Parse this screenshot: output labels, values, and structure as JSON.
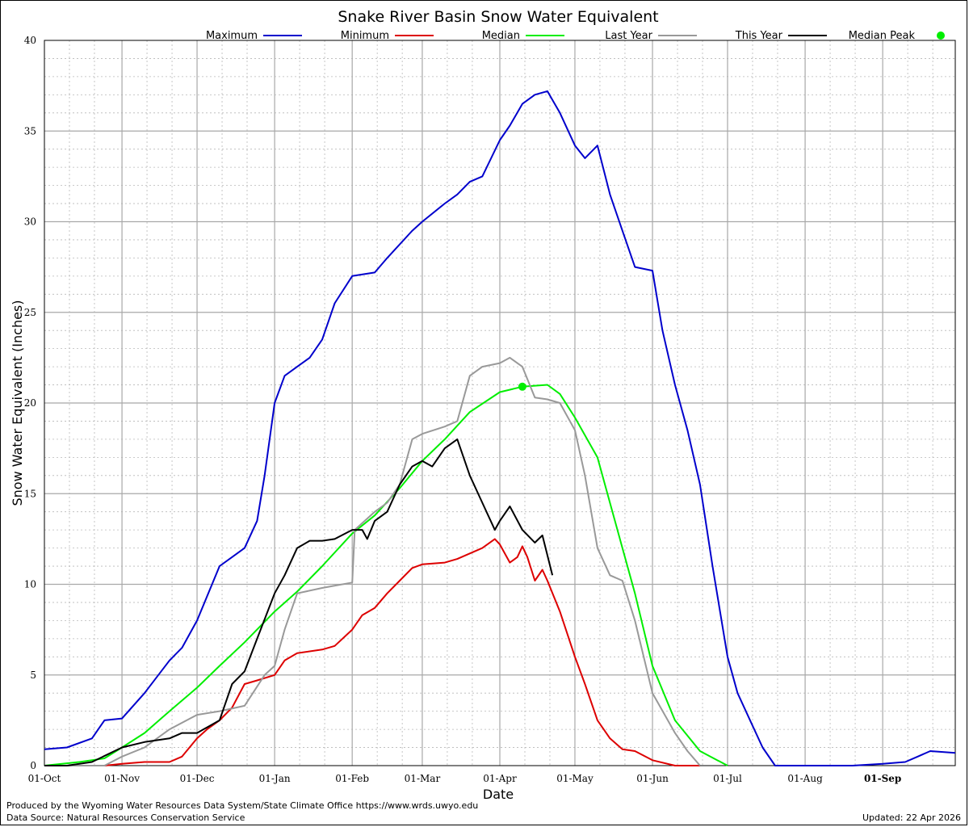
{
  "chart_data": {
    "type": "line",
    "title": "Snake River Basin Snow Water Equivalent",
    "xlabel": "Date",
    "ylabel": "Snow Water Equivalent (Inches)",
    "ylim": [
      0,
      40
    ],
    "yticks": [
      "0",
      "5",
      "10",
      "15",
      "20",
      "25",
      "30",
      "35",
      "40"
    ],
    "xticks": [
      "01-Oct",
      "01-Nov",
      "01-Dec",
      "01-Jan",
      "01-Feb",
      "01-Mar",
      "01-Apr",
      "01-May",
      "01-Jun",
      "01-Jul",
      "01-Aug",
      "01-Sep"
    ],
    "grid": true,
    "legend_placement": "top",
    "legend": [
      "Maximum",
      "Minimum",
      "Median",
      "Last Year",
      "This Year",
      "Median Peak"
    ],
    "colors": {
      "Maximum": "#0000cc",
      "Minimum": "#dd0000",
      "Median": "#00ee00",
      "Last Year": "#999999",
      "This Year": "#000000",
      "Median Peak": "#00ee00"
    },
    "series": [
      {
        "name": "Maximum",
        "color": "#0000cc",
        "points": [
          [
            "01-Oct",
            0.9
          ],
          [
            "10-Oct",
            1.0
          ],
          [
            "20-Oct",
            1.5
          ],
          [
            "25-Oct",
            2.5
          ],
          [
            "01-Nov",
            2.6
          ],
          [
            "10-Nov",
            4.0
          ],
          [
            "20-Nov",
            5.8
          ],
          [
            "25-Nov",
            6.5
          ],
          [
            "01-Dec",
            8.0
          ],
          [
            "10-Dec",
            11.0
          ],
          [
            "15-Dec",
            11.5
          ],
          [
            "20-Dec",
            12.0
          ],
          [
            "25-Dec",
            13.5
          ],
          [
            "28-Dec",
            16.0
          ],
          [
            "01-Jan",
            20.0
          ],
          [
            "05-Jan",
            21.5
          ],
          [
            "10-Jan",
            22.0
          ],
          [
            "15-Jan",
            22.5
          ],
          [
            "20-Jan",
            23.5
          ],
          [
            "25-Jan",
            25.5
          ],
          [
            "01-Feb",
            27.0
          ],
          [
            "10-Feb",
            27.2
          ],
          [
            "15-Feb",
            28.0
          ],
          [
            "25-Feb",
            29.5
          ],
          [
            "01-Mar",
            30.0
          ],
          [
            "10-Mar",
            31.0
          ],
          [
            "15-Mar",
            31.5
          ],
          [
            "20-Mar",
            32.2
          ],
          [
            "25-Mar",
            32.5
          ],
          [
            "01-Apr",
            34.5
          ],
          [
            "05-Apr",
            35.3
          ],
          [
            "10-Apr",
            36.5
          ],
          [
            "15-Apr",
            37.0
          ],
          [
            "20-Apr",
            37.2
          ],
          [
            "25-Apr",
            36.0
          ],
          [
            "01-May",
            34.2
          ],
          [
            "05-May",
            33.5
          ],
          [
            "10-May",
            34.2
          ],
          [
            "15-May",
            31.5
          ],
          [
            "20-May",
            29.5
          ],
          [
            "25-May",
            27.5
          ],
          [
            "01-Jun",
            27.3
          ],
          [
            "05-Jun",
            24.0
          ],
          [
            "10-Jun",
            21.0
          ],
          [
            "15-Jun",
            18.5
          ],
          [
            "20-Jun",
            15.5
          ],
          [
            "25-Jun",
            11.0
          ],
          [
            "01-Jul",
            6.0
          ],
          [
            "05-Jul",
            4.0
          ],
          [
            "10-Jul",
            2.5
          ],
          [
            "15-Jul",
            1.0
          ],
          [
            "20-Jul",
            0.0
          ],
          [
            "01-Aug",
            0.0
          ],
          [
            "20-Aug",
            0.0
          ],
          [
            "01-Sep",
            0.1
          ],
          [
            "10-Sep",
            0.2
          ],
          [
            "15-Sep",
            0.5
          ],
          [
            "20-Sep",
            0.8
          ],
          [
            "30-Sep",
            0.7
          ]
        ]
      },
      {
        "name": "Minimum",
        "color": "#dd0000",
        "points": [
          [
            "01-Oct",
            0.0
          ],
          [
            "25-Oct",
            0.0
          ],
          [
            "01-Nov",
            0.1
          ],
          [
            "10-Nov",
            0.2
          ],
          [
            "20-Nov",
            0.2
          ],
          [
            "25-Nov",
            0.5
          ],
          [
            "01-Dec",
            1.5
          ],
          [
            "05-Dec",
            2.0
          ],
          [
            "10-Dec",
            2.5
          ],
          [
            "15-Dec",
            3.2
          ],
          [
            "20-Dec",
            4.5
          ],
          [
            "25-Dec",
            4.7
          ],
          [
            "01-Jan",
            5.0
          ],
          [
            "05-Jan",
            5.8
          ],
          [
            "10-Jan",
            6.2
          ],
          [
            "20-Jan",
            6.4
          ],
          [
            "25-Jan",
            6.6
          ],
          [
            "01-Feb",
            7.5
          ],
          [
            "05-Feb",
            8.3
          ],
          [
            "10-Feb",
            8.7
          ],
          [
            "15-Feb",
            9.5
          ],
          [
            "20-Feb",
            10.2
          ],
          [
            "25-Feb",
            10.9
          ],
          [
            "01-Mar",
            11.1
          ],
          [
            "10-Mar",
            11.2
          ],
          [
            "15-Mar",
            11.4
          ],
          [
            "20-Mar",
            11.7
          ],
          [
            "25-Mar",
            12.0
          ],
          [
            "30-Mar",
            12.5
          ],
          [
            "01-Apr",
            12.2
          ],
          [
            "05-Apr",
            11.2
          ],
          [
            "08-Apr",
            11.5
          ],
          [
            "10-Apr",
            12.1
          ],
          [
            "12-Apr",
            11.5
          ],
          [
            "15-Apr",
            10.2
          ],
          [
            "18-Apr",
            10.8
          ],
          [
            "20-Apr",
            10.2
          ],
          [
            "25-Apr",
            8.5
          ],
          [
            "01-May",
            6.0
          ],
          [
            "05-May",
            4.5
          ],
          [
            "10-May",
            2.5
          ],
          [
            "15-May",
            1.5
          ],
          [
            "20-May",
            0.9
          ],
          [
            "25-May",
            0.8
          ],
          [
            "01-Jun",
            0.3
          ],
          [
            "10-Jun",
            0.0
          ],
          [
            "20-Jun",
            0.0
          ]
        ]
      },
      {
        "name": "Median",
        "color": "#00ee00",
        "points": [
          [
            "01-Oct",
            0.0
          ],
          [
            "15-Oct",
            0.2
          ],
          [
            "25-Oct",
            0.4
          ],
          [
            "01-Nov",
            1.0
          ],
          [
            "10-Nov",
            1.8
          ],
          [
            "20-Nov",
            3.0
          ],
          [
            "01-Dec",
            4.3
          ],
          [
            "10-Dec",
            5.5
          ],
          [
            "20-Dec",
            6.8
          ],
          [
            "01-Jan",
            8.5
          ],
          [
            "10-Jan",
            9.6
          ],
          [
            "20-Jan",
            11.0
          ],
          [
            "01-Feb",
            12.8
          ],
          [
            "10-Feb",
            13.8
          ],
          [
            "20-Feb",
            15.3
          ],
          [
            "01-Mar",
            16.8
          ],
          [
            "10-Mar",
            18.0
          ],
          [
            "20-Mar",
            19.5
          ],
          [
            "01-Apr",
            20.6
          ],
          [
            "10-Apr",
            20.9
          ],
          [
            "20-Apr",
            21.0
          ],
          [
            "25-Apr",
            20.5
          ],
          [
            "01-May",
            19.2
          ],
          [
            "10-May",
            17.0
          ],
          [
            "20-May",
            12.0
          ],
          [
            "25-May",
            9.5
          ],
          [
            "01-Jun",
            5.5
          ],
          [
            "10-Jun",
            2.5
          ],
          [
            "20-Jun",
            0.8
          ],
          [
            "01-Jul",
            0.0
          ]
        ]
      },
      {
        "name": "Last Year",
        "color": "#999999",
        "points": [
          [
            "01-Oct",
            0.0
          ],
          [
            "25-Oct",
            0.0
          ],
          [
            "01-Nov",
            0.5
          ],
          [
            "10-Nov",
            1.0
          ],
          [
            "20-Nov",
            2.0
          ],
          [
            "01-Dec",
            2.8
          ],
          [
            "10-Dec",
            3.0
          ],
          [
            "20-Dec",
            3.3
          ],
          [
            "28-Dec",
            5.0
          ],
          [
            "01-Jan",
            5.5
          ],
          [
            "05-Jan",
            7.5
          ],
          [
            "10-Jan",
            9.5
          ],
          [
            "20-Jan",
            9.8
          ],
          [
            "01-Feb",
            10.1
          ],
          [
            "02-Feb",
            13.0
          ],
          [
            "10-Feb",
            14.0
          ],
          [
            "15-Feb",
            14.5
          ],
          [
            "20-Feb",
            15.5
          ],
          [
            "25-Feb",
            18.0
          ],
          [
            "01-Mar",
            18.3
          ],
          [
            "10-Mar",
            18.7
          ],
          [
            "15-Mar",
            19.0
          ],
          [
            "20-Mar",
            21.5
          ],
          [
            "25-Mar",
            22.0
          ],
          [
            "01-Apr",
            22.2
          ],
          [
            "05-Apr",
            22.5
          ],
          [
            "10-Apr",
            22.0
          ],
          [
            "15-Apr",
            20.3
          ],
          [
            "20-Apr",
            20.2
          ],
          [
            "25-Apr",
            20.0
          ],
          [
            "01-May",
            18.5
          ],
          [
            "05-May",
            16.0
          ],
          [
            "10-May",
            12.0
          ],
          [
            "15-May",
            10.5
          ],
          [
            "20-May",
            10.2
          ],
          [
            "25-May",
            8.0
          ],
          [
            "01-Jun",
            4.0
          ],
          [
            "10-Jun",
            1.8
          ],
          [
            "15-Jun",
            0.8
          ],
          [
            "20-Jun",
            0.0
          ]
        ]
      },
      {
        "name": "This Year",
        "color": "#000000",
        "points": [
          [
            "01-Oct",
            0.0
          ],
          [
            "10-Oct",
            0.0
          ],
          [
            "20-Oct",
            0.2
          ],
          [
            "01-Nov",
            1.0
          ],
          [
            "10-Nov",
            1.3
          ],
          [
            "20-Nov",
            1.5
          ],
          [
            "25-Nov",
            1.8
          ],
          [
            "01-Dec",
            1.8
          ],
          [
            "10-Dec",
            2.5
          ],
          [
            "15-Dec",
            4.5
          ],
          [
            "20-Dec",
            5.2
          ],
          [
            "25-Dec",
            7.0
          ],
          [
            "01-Jan",
            9.5
          ],
          [
            "05-Jan",
            10.5
          ],
          [
            "10-Jan",
            12.0
          ],
          [
            "15-Jan",
            12.4
          ],
          [
            "20-Jan",
            12.4
          ],
          [
            "25-Jan",
            12.5
          ],
          [
            "01-Feb",
            13.0
          ],
          [
            "05-Feb",
            13.0
          ],
          [
            "07-Feb",
            12.5
          ],
          [
            "10-Feb",
            13.5
          ],
          [
            "15-Feb",
            14.0
          ],
          [
            "20-Feb",
            15.5
          ],
          [
            "25-Feb",
            16.5
          ],
          [
            "01-Mar",
            16.8
          ],
          [
            "05-Mar",
            16.5
          ],
          [
            "10-Mar",
            17.5
          ],
          [
            "15-Mar",
            18.0
          ],
          [
            "20-Mar",
            16.0
          ],
          [
            "25-Mar",
            14.5
          ],
          [
            "30-Mar",
            13.0
          ],
          [
            "01-Apr",
            13.5
          ],
          [
            "05-Apr",
            14.3
          ],
          [
            "10-Apr",
            13.0
          ],
          [
            "15-Apr",
            12.3
          ],
          [
            "18-Apr",
            12.7
          ],
          [
            "22-Apr",
            10.5
          ]
        ]
      }
    ],
    "median_peak": {
      "date": "10-Apr",
      "value": 20.9
    }
  },
  "footer": {
    "produced_by": "Produced by the Wyoming Water Resources Data System/State Climate Office https://www.wrds.uwyo.edu",
    "data_source": "Data Source: Natural Resources Conservation Service",
    "updated": "Updated: 22 Apr 2026"
  }
}
